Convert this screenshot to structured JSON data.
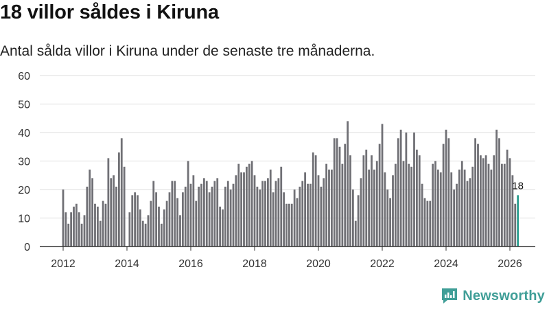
{
  "title": "18 villor såldes i Kiruna",
  "subtitle": "Antal sålda villor i Kiruna under de senaste tre månaderna.",
  "brand": "Newsworthy",
  "colors": {
    "bar": "#707075",
    "highlight": "#2a9d8f",
    "grid": "#dddddd",
    "axis": "#333333",
    "brand": "#3f9e97"
  },
  "chart_data": {
    "type": "bar",
    "title": "18 villor såldes i Kiruna",
    "xlabel": "",
    "ylabel": "",
    "ylim": [
      0,
      60
    ],
    "yticks": [
      0,
      10,
      20,
      30,
      40,
      50,
      60
    ],
    "xlim": [
      2012,
      2026.25
    ],
    "xticks": [
      2012,
      2014,
      2016,
      2018,
      2020,
      2022,
      2024,
      2026
    ],
    "start": "2012-01",
    "frequency": "monthly",
    "last_value_label": "18",
    "values": [
      20,
      12,
      8,
      12,
      14,
      15,
      12,
      8,
      11,
      21,
      27,
      24,
      15,
      14,
      9,
      16,
      15,
      31,
      24,
      25,
      21,
      33,
      38,
      28,
      0,
      12,
      18,
      19,
      18,
      13,
      9,
      8,
      11,
      16,
      23,
      19,
      14,
      8,
      13,
      16,
      19,
      23,
      23,
      17,
      11,
      19,
      21,
      30,
      22,
      25,
      16,
      21,
      22,
      24,
      23,
      19,
      21,
      23,
      24,
      14,
      13,
      21,
      23,
      20,
      22,
      25,
      29,
      26,
      26,
      28,
      29,
      30,
      25,
      21,
      20,
      23,
      23,
      24,
      27,
      19,
      23,
      24,
      28,
      19,
      15,
      15,
      15,
      20,
      17,
      21,
      23,
      26,
      22,
      22,
      33,
      32,
      25,
      21,
      24,
      29,
      27,
      27,
      38,
      38,
      35,
      29,
      36,
      44,
      32,
      20,
      9,
      18,
      24,
      32,
      34,
      27,
      32,
      27,
      30,
      36,
      43,
      26,
      20,
      17,
      25,
      29,
      38,
      41,
      30,
      40,
      29,
      28,
      40,
      34,
      32,
      22,
      17,
      16,
      16,
      29,
      30,
      27,
      26,
      36,
      41,
      38,
      26,
      20,
      22,
      27,
      30,
      27,
      23,
      24,
      28,
      38,
      36,
      32,
      31,
      32,
      29,
      27,
      32,
      41,
      38,
      29,
      29,
      34,
      31,
      25,
      15,
      18
    ]
  }
}
